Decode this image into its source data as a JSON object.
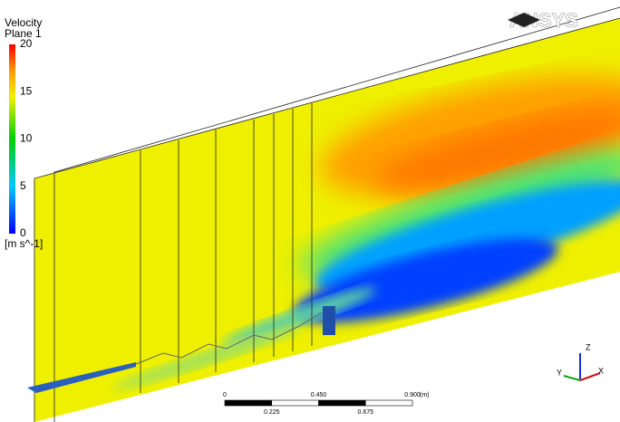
{
  "legend": {
    "title": "Velocity",
    "subtitle": "Plane 1",
    "ticks": [
      0,
      5,
      10,
      15,
      20
    ],
    "unit": "[m s^-1]"
  },
  "logo": "ANSYS",
  "scale_bar": {
    "ticks": [
      0,
      0.225,
      {
        "value": 0.45,
        "label": "0.450"
      },
      0.675,
      {
        "value": 0.9,
        "label": "0.900"
      }
    ],
    "unit": "(m)"
  },
  "axes": {
    "x": "X",
    "y": "Y",
    "z": "Z"
  }
}
